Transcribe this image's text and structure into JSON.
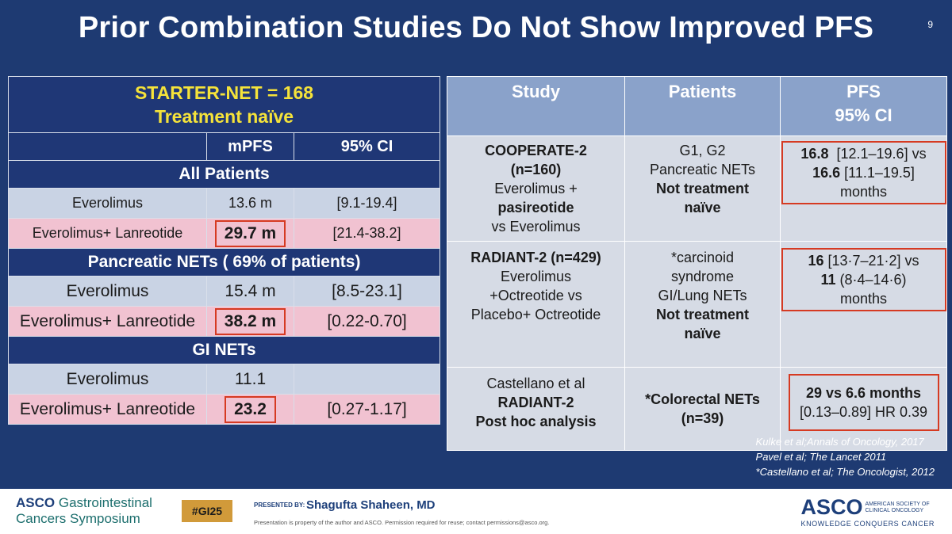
{
  "slide": {
    "title": "Prior Combination Studies Do Not Show Improved PFS",
    "number": "9"
  },
  "left_table": {
    "header_line1": "STARTER-NET = 168",
    "header_line2": "Treatment naïve",
    "col_mpfs": "mPFS",
    "col_ci": "95% CI",
    "sections": [
      {
        "title": "All Patients",
        "rows": [
          {
            "treatment": "Everolimus",
            "mpfs": "13.6 m",
            "ci": "[9.1-19.4]"
          },
          {
            "treatment": "Everolimus+ Lanreotide",
            "mpfs": "29.7 m",
            "ci": "[21.4-38.2]"
          }
        ]
      },
      {
        "title": "Pancreatic NETs ( 69% of patients)",
        "rows": [
          {
            "treatment": "Everolimus",
            "mpfs": "15.4 m",
            "ci": "[8.5-23.1]"
          },
          {
            "treatment": "Everolimus+ Lanreotide",
            "mpfs": "38.2 m",
            "ci": "[0.22-0.70]"
          }
        ]
      },
      {
        "title": "GI NETs",
        "rows": [
          {
            "treatment": "Everolimus",
            "mpfs": "11.1",
            "ci": ""
          },
          {
            "treatment": "Everolimus+ Lanreotide",
            "mpfs": "23.2",
            "ci": "[0.27-1.17]"
          }
        ]
      }
    ]
  },
  "right_table": {
    "headers": {
      "study": "Study",
      "patients": "Patients",
      "pfs_line1": "PFS",
      "pfs_line2": "95% CI"
    },
    "rows": [
      {
        "study": [
          "COOPERATE-2",
          "(n=160)",
          "Everolimus +",
          "pasireotide",
          "vs Everolimus"
        ],
        "patients": [
          "G1, G2",
          "Pancreatic NETs",
          "Not treatment",
          "naïve"
        ],
        "pfs_a_value": "16.8",
        "pfs_a_ci": "[12.1–19.6] vs",
        "pfs_b_value": "16.6",
        "pfs_b_ci": "[11.1–19.5]",
        "pfs_unit": "months"
      },
      {
        "study": [
          "RADIANT-2 (n=429)",
          "Everolimus",
          "+Octreotide vs",
          "Placebo+ Octreotide"
        ],
        "patients": [
          "*carcinoid",
          "syndrome",
          "GI/Lung NETs",
          "Not treatment",
          "naïve"
        ],
        "pfs_a_value": "16",
        "pfs_a_ci": "[13·7–21·2] vs",
        "pfs_b_value": "11",
        "pfs_b_ci": "(8·4–14·6)",
        "pfs_unit": "months"
      },
      {
        "study": [
          "Castellano et al",
          "RADIANT-2",
          "Post hoc analysis"
        ],
        "patients": [
          "*Colorectal NETs",
          "(n=39)"
        ],
        "pfs_line1": "29 vs 6.6 months",
        "pfs_line2": "[0.13–0.89] HR 0.39"
      }
    ]
  },
  "references": [
    "Kulke et al;Annals of Oncology, 2017",
    "Pavel et al; The Lancet 2011",
    "*Castellano et al; The Oncologist, 2012"
  ],
  "footer": {
    "brand_asco": "ASCO",
    "brand_line1_rest": " Gastrointestinal",
    "brand_line2": "Cancers Symposium",
    "hashtag": "#GI25",
    "presented_by": "PRESENTED BY:",
    "presenter": "Shagufta Shaheen, MD",
    "note": "Presentation is property of the author and ASCO. Permission required for reuse; contact permissions@asco.org.",
    "asco_big": "ASCO",
    "society_line1": "AMERICAN SOCIETY OF",
    "society_line2": "CLINICAL ONCOLOGY",
    "tagline": "KNOWLEDGE CONQUERS CANCER"
  },
  "colors": {
    "background": "#1e3a72",
    "header_yellow": "#f5e33a",
    "highlight_box": "#d63a22",
    "row_blue": "#c9d3e4",
    "row_pink": "#f1c2d1"
  }
}
